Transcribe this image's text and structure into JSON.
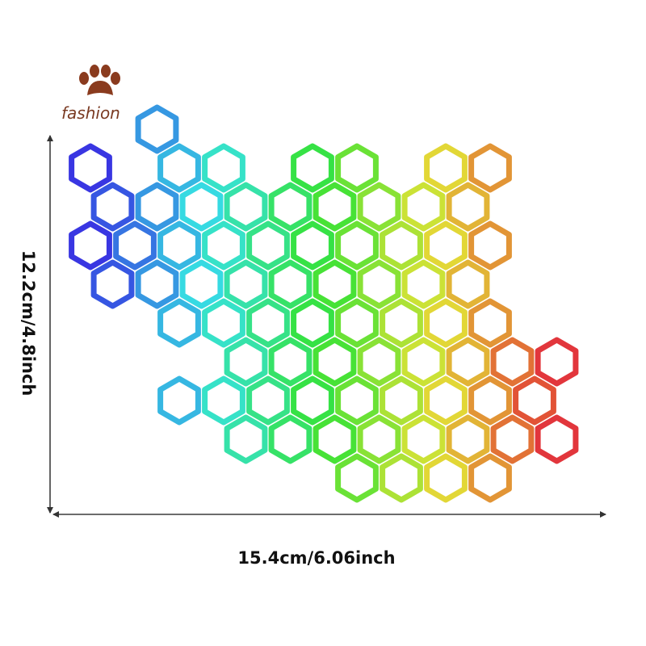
{
  "brand": "fashion",
  "dimensions": {
    "height": "12.2cm/4.8inch",
    "width": "15.4cm/6.06inch"
  }
}
